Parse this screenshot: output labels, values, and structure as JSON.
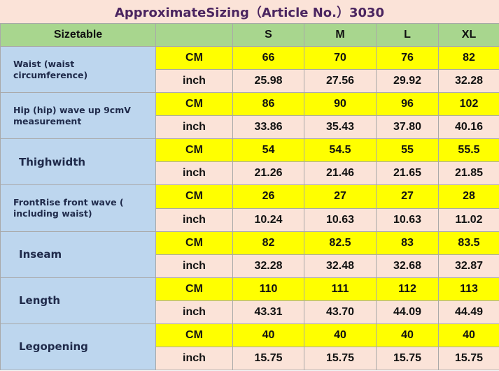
{
  "title": "ApproximateSizing（Article No.）3030",
  "header": {
    "label": "Sizetable",
    "sizes": [
      "S",
      "M",
      "L",
      "XL"
    ]
  },
  "units": {
    "cm": "CM",
    "inch": "inch"
  },
  "rows": [
    {
      "label": "Waist (waist circumference)",
      "cm": [
        "66",
        "70",
        "76",
        "82"
      ],
      "inch": [
        "25.98",
        "27.56",
        "29.92",
        "32.28"
      ]
    },
    {
      "label": "Hip (hip) wave up 9cmV measurement",
      "cm": [
        "86",
        "90",
        "96",
        "102"
      ],
      "inch": [
        "33.86",
        "35.43",
        "37.80",
        "40.16"
      ]
    },
    {
      "label": "Thighwidth",
      "cm": [
        "54",
        "54.5",
        "55",
        "55.5"
      ],
      "inch": [
        "21.26",
        "21.46",
        "21.65",
        "21.85"
      ]
    },
    {
      "label": "FrontRise front wave ( including waist)",
      "cm": [
        "26",
        "27",
        "27",
        "28"
      ],
      "inch": [
        "10.24",
        "10.63",
        "10.63",
        "11.02"
      ]
    },
    {
      "label": "Inseam",
      "cm": [
        "82",
        "82.5",
        "83",
        "83.5"
      ],
      "inch": [
        "32.28",
        "32.48",
        "32.68",
        "32.87"
      ]
    },
    {
      "label": "Length",
      "cm": [
        "110",
        "111",
        "112",
        "113"
      ],
      "inch": [
        "43.31",
        "43.70",
        "44.09",
        "44.49"
      ]
    },
    {
      "label": "Legopening",
      "cm": [
        "40",
        "40",
        "40",
        "40"
      ],
      "inch": [
        "15.75",
        "15.75",
        "15.75",
        "15.75"
      ]
    }
  ]
}
